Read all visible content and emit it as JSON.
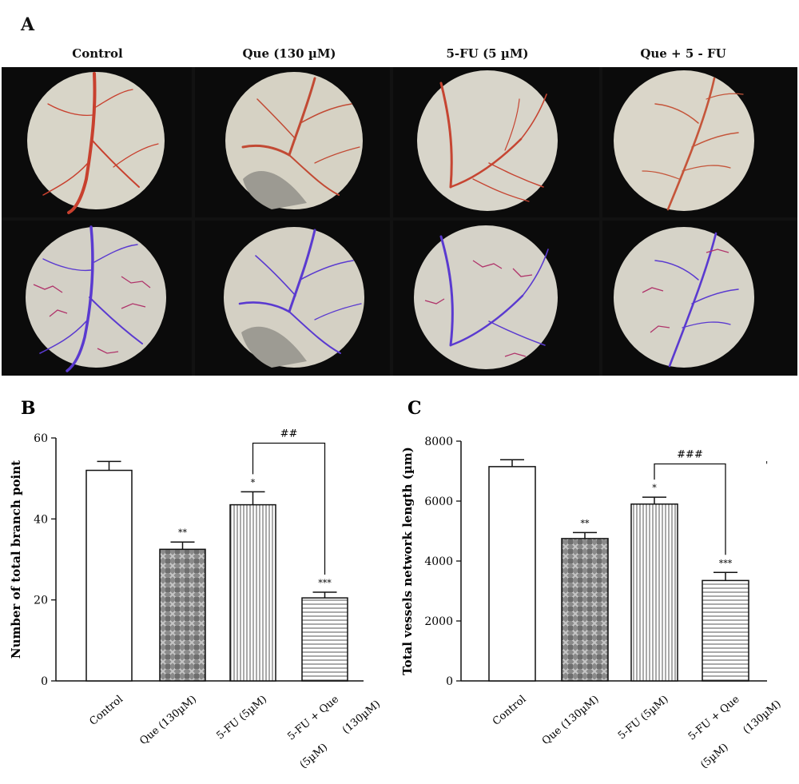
{
  "panel_a": {
    "letter": "A",
    "columns": [
      "Control",
      "Que (130 µM)",
      "5-FU (5 µM)",
      "Que + 5 - FU"
    ]
  },
  "chart_data": [
    {
      "type": "bar",
      "panel": "B",
      "ylabel": "Number of total branch point",
      "ylim": [
        0,
        60
      ],
      "yticks": [
        0,
        20,
        40,
        60
      ],
      "categories": [
        {
          "lines": [
            "Control"
          ]
        },
        {
          "lines": [
            "Que (130µM)"
          ]
        },
        {
          "lines": [
            "5-FU (5µM)"
          ]
        },
        {
          "lines": [
            "5-FU + Que",
            "(5µM)",
            "(130µM)"
          ]
        }
      ],
      "values": [
        52,
        32.5,
        43.5,
        20.5
      ],
      "errors": [
        2.2,
        1.8,
        3.2,
        1.4
      ],
      "significance": [
        "",
        "**",
        "*",
        "***"
      ],
      "bracket": {
        "from": 2,
        "to": 3,
        "label": "##"
      },
      "patterns": [
        "none",
        "crosshatch",
        "vertical",
        "horizontal"
      ]
    },
    {
      "type": "bar",
      "panel": "C",
      "ylabel": "Total vessels network length (µm)",
      "ylim": [
        0,
        8000
      ],
      "yticks": [
        0,
        2000,
        4000,
        6000,
        8000
      ],
      "categories": [
        {
          "lines": [
            "Control"
          ]
        },
        {
          "lines": [
            "Que (130µM)"
          ]
        },
        {
          "lines": [
            "5-FU (5µM)"
          ]
        },
        {
          "lines": [
            "5-FU + Que",
            "(5µM)",
            "(130µM)"
          ]
        }
      ],
      "values": [
        7150,
        4750,
        5900,
        3350
      ],
      "errors": [
        230,
        200,
        230,
        270
      ],
      "significance": [
        "",
        "**",
        "*",
        "***"
      ],
      "bracket": {
        "from": 2,
        "to": 3,
        "label": "###"
      },
      "patterns": [
        "none",
        "crosshatch",
        "vertical",
        "horizontal"
      ]
    }
  ]
}
